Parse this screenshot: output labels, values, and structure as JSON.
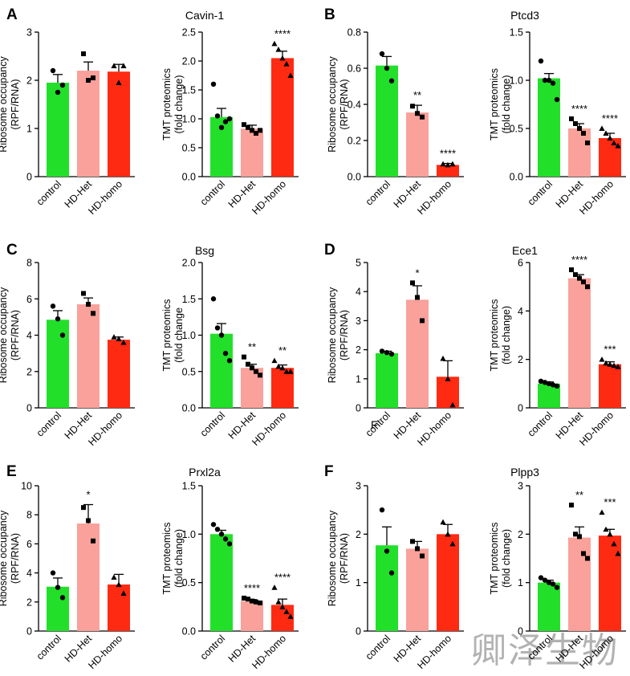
{
  "colors": {
    "control": "#22e02a",
    "het": "#f9a19a",
    "homo": "#ff2a12",
    "axis": "#000000"
  },
  "categories": [
    "control",
    "HD-Het",
    "HD-homo"
  ],
  "marker_shapes": [
    "circle",
    "square",
    "triangle"
  ],
  "watermark": "卿泽生物",
  "stray_letter": "F",
  "chart_data": [
    {
      "panel": "A",
      "gene": "Cavin-1",
      "type": "bar",
      "charts": [
        {
          "kind": "ribo",
          "ylabel": [
            "Ribosome occupancy",
            "(RPF/RNA)"
          ],
          "ylim": [
            0,
            3
          ],
          "yticks": [
            0,
            1,
            2,
            3
          ],
          "tickLabels": [
            "0",
            "1",
            "2",
            "3"
          ],
          "values": [
            1.95,
            2.2,
            2.18
          ],
          "errors": [
            0.17,
            0.18,
            0.15
          ],
          "sig": [
            "",
            "",
            ""
          ],
          "points": [
            [
              2.2,
              1.75,
              1.9
            ],
            [
              2.55,
              2.0,
              2.05
            ],
            [
              2.3,
              1.95,
              2.3
            ]
          ]
        },
        {
          "kind": "tmt",
          "ylabel": [
            "TMT proteomics",
            "(fold change)"
          ],
          "ylim": [
            0,
            2.5
          ],
          "yticks": [
            0,
            0.5,
            1,
            1.5,
            2,
            2.5
          ],
          "tickLabels": [
            "0.0",
            "0.5",
            "1.0",
            "1.5",
            "2.0",
            "2.5"
          ],
          "values": [
            1.03,
            0.83,
            2.05
          ],
          "errors": [
            0.15,
            0.06,
            0.12
          ],
          "sig": [
            "",
            "",
            "****"
          ],
          "points": [
            [
              1.6,
              1.05,
              0.85,
              0.95,
              1.0
            ],
            [
              0.9,
              0.85,
              0.8,
              0.75,
              0.8
            ],
            [
              2.3,
              2.2,
              2.05,
              1.95,
              1.75
            ]
          ]
        }
      ]
    },
    {
      "panel": "B",
      "gene": "Ptcd3",
      "type": "bar",
      "charts": [
        {
          "kind": "ribo",
          "ylabel": [
            "Ribosome occupancy",
            "(RPF/RNA)"
          ],
          "ylim": [
            0,
            0.8
          ],
          "yticks": [
            0,
            0.2,
            0.4,
            0.6,
            0.8
          ],
          "tickLabels": [
            "0.0",
            "0.2",
            "0.4",
            "0.6",
            "0.8"
          ],
          "values": [
            0.615,
            0.355,
            0.065
          ],
          "errors": [
            0.05,
            0.04,
            0.008
          ],
          "sig": [
            "",
            "**",
            "****"
          ],
          "points": [
            [
              0.68,
              0.6,
              0.53
            ],
            [
              0.39,
              0.35,
              0.33
            ],
            [
              0.07,
              0.065,
              0.07
            ]
          ]
        },
        {
          "kind": "tmt",
          "ylabel": [
            "TMT proteomics",
            "(fold change)"
          ],
          "ylim": [
            0,
            1.5
          ],
          "yticks": [
            0,
            0.5,
            1,
            1.5
          ],
          "tickLabels": [
            "0.0",
            "0.5",
            "1.0",
            "1.5"
          ],
          "values": [
            1.02,
            0.5,
            0.4
          ],
          "errors": [
            0.05,
            0.05,
            0.05
          ],
          "sig": [
            "",
            "****",
            "****"
          ],
          "points": [
            [
              1.2,
              1.0,
              1.0,
              0.97,
              0.8
            ],
            [
              0.6,
              0.55,
              0.5,
              0.45,
              0.35
            ],
            [
              0.5,
              0.45,
              0.4,
              0.35,
              0.32
            ]
          ]
        }
      ]
    },
    {
      "panel": "C",
      "gene": "Bsg",
      "type": "bar",
      "charts": [
        {
          "kind": "ribo",
          "ylabel": [
            "Ribosome occupancy",
            "(RPF/RNA)"
          ],
          "ylim": [
            0,
            8
          ],
          "yticks": [
            0,
            2,
            4,
            6,
            8
          ],
          "tickLabels": [
            "0",
            "2",
            "4",
            "6",
            "8"
          ],
          "values": [
            4.85,
            5.7,
            3.75
          ],
          "errors": [
            0.5,
            0.35,
            0.15
          ],
          "sig": [
            "",
            "",
            ""
          ],
          "points": [
            [
              5.6,
              4.9,
              4.0
            ],
            [
              6.3,
              5.7,
              5.2
            ],
            [
              3.9,
              3.8,
              3.6
            ]
          ]
        },
        {
          "kind": "tmt",
          "ylabel": [
            "TMT proteomics",
            "(fold change"
          ],
          "ylim": [
            0,
            2
          ],
          "yticks": [
            0,
            0.5,
            1,
            1.5,
            2
          ],
          "tickLabels": [
            "0.0",
            "0.5",
            "1.0",
            "1.5",
            "2.0"
          ],
          "values": [
            1.02,
            0.55,
            0.55
          ],
          "errors": [
            0.14,
            0.05,
            0.04
          ],
          "sig": [
            "",
            "**",
            "**"
          ],
          "points": [
            [
              1.5,
              1.1,
              1.0,
              0.75,
              0.65
            ],
            [
              0.7,
              0.6,
              0.55,
              0.5,
              0.45
            ],
            [
              0.65,
              0.57,
              0.55,
              0.5,
              0.5
            ]
          ]
        }
      ]
    },
    {
      "panel": "D",
      "gene": "Ece1",
      "type": "bar",
      "charts": [
        {
          "kind": "ribo",
          "ylabel": [
            "Ribosome occupancy",
            "(RPF/RNA)"
          ],
          "ylim": [
            0,
            5
          ],
          "yticks": [
            0,
            1,
            2,
            3,
            4,
            5
          ],
          "tickLabels": [
            "0",
            "1",
            "2",
            "3",
            "4",
            "5"
          ],
          "values": [
            1.88,
            3.72,
            1.07
          ],
          "errors": [
            0.07,
            0.48,
            0.55
          ],
          "sig": [
            "",
            "*",
            ""
          ],
          "points": [
            [
              1.95,
              1.9,
              1.85
            ],
            [
              4.3,
              3.8,
              3.0
            ],
            [
              1.7,
              1.0,
              0.1
            ]
          ]
        },
        {
          "kind": "tmt",
          "ylabel": [
            "TMT proteomics",
            "(fold change)"
          ],
          "ylim": [
            0,
            6
          ],
          "yticks": [
            0,
            2,
            4,
            6
          ],
          "tickLabels": [
            "0",
            "2",
            "4",
            "6"
          ],
          "values": [
            1.0,
            5.35,
            1.8
          ],
          "errors": [
            0.07,
            0.15,
            0.1
          ],
          "sig": [
            "",
            "****",
            "***"
          ],
          "points": [
            [
              1.1,
              1.05,
              1.0,
              0.95,
              0.9
            ],
            [
              5.7,
              5.5,
              5.35,
              5.2,
              5.0
            ],
            [
              2.0,
              1.85,
              1.8,
              1.75,
              1.7
            ]
          ]
        }
      ]
    },
    {
      "panel": "E",
      "gene": "Prxl2a",
      "type": "bar",
      "charts": [
        {
          "kind": "ribo",
          "ylabel": [
            "Ribosome occupancy",
            "(RPF/RNA)"
          ],
          "ylim": [
            0,
            10
          ],
          "yticks": [
            0,
            2,
            4,
            6,
            8,
            10
          ],
          "tickLabels": [
            "0",
            "2",
            "4",
            "6",
            "8",
            "10"
          ],
          "values": [
            3.05,
            7.4,
            3.2
          ],
          "errors": [
            0.6,
            1.3,
            0.7
          ],
          "sig": [
            "",
            "*",
            ""
          ],
          "points": [
            [
              4.0,
              3.0,
              2.3
            ],
            [
              8.5,
              7.6,
              6.2
            ],
            [
              3.7,
              3.2,
              2.6
            ]
          ]
        },
        {
          "kind": "tmt",
          "ylabel": [
            "TMT proteomics",
            "(fold change)"
          ],
          "ylim": [
            0,
            1.5
          ],
          "yticks": [
            0,
            0.5,
            1,
            1.5
          ],
          "tickLabels": [
            "0.0",
            "0.5",
            "1.0",
            "1.5"
          ],
          "values": [
            1.0,
            0.31,
            0.27
          ],
          "errors": [
            0.04,
            0.015,
            0.06
          ],
          "sig": [
            "",
            "****",
            "****"
          ],
          "points": [
            [
              1.1,
              1.05,
              1.0,
              0.95,
              0.9
            ],
            [
              0.34,
              0.33,
              0.31,
              0.3,
              0.29
            ],
            [
              0.45,
              0.3,
              0.25,
              0.2,
              0.15
            ]
          ]
        }
      ]
    },
    {
      "panel": "F",
      "gene": "Plpp3",
      "type": "bar",
      "charts": [
        {
          "kind": "ribo",
          "ylabel": [
            "Ribosome occupancy",
            "(RPF/RNA)"
          ],
          "ylim": [
            0,
            3
          ],
          "yticks": [
            0,
            1,
            2,
            3
          ],
          "tickLabels": [
            "0",
            "1",
            "2",
            "3"
          ],
          "values": [
            1.77,
            1.7,
            2.0
          ],
          "errors": [
            0.38,
            0.15,
            0.2
          ],
          "sig": [
            "",
            "",
            ""
          ],
          "points": [
            [
              2.5,
              1.65,
              1.2
            ],
            [
              1.85,
              1.7,
              1.55
            ],
            [
              2.25,
              2.0,
              1.8
            ]
          ]
        },
        {
          "kind": "tmt",
          "ylabel": [
            "TMT proteomics",
            "(fold change)"
          ],
          "ylim": [
            0,
            3
          ],
          "yticks": [
            0,
            1,
            2,
            3
          ],
          "tickLabels": [
            "0",
            "1",
            "2",
            "3"
          ],
          "values": [
            1.0,
            1.93,
            1.97
          ],
          "errors": [
            0.05,
            0.22,
            0.13
          ],
          "sig": [
            "",
            "**",
            "***"
          ],
          "points": [
            [
              1.1,
              1.05,
              1.0,
              0.97,
              0.9
            ],
            [
              2.6,
              2.0,
              1.95,
              1.6,
              1.5
            ],
            [
              2.45,
              2.1,
              2.0,
              1.8,
              1.6
            ]
          ]
        }
      ]
    }
  ]
}
